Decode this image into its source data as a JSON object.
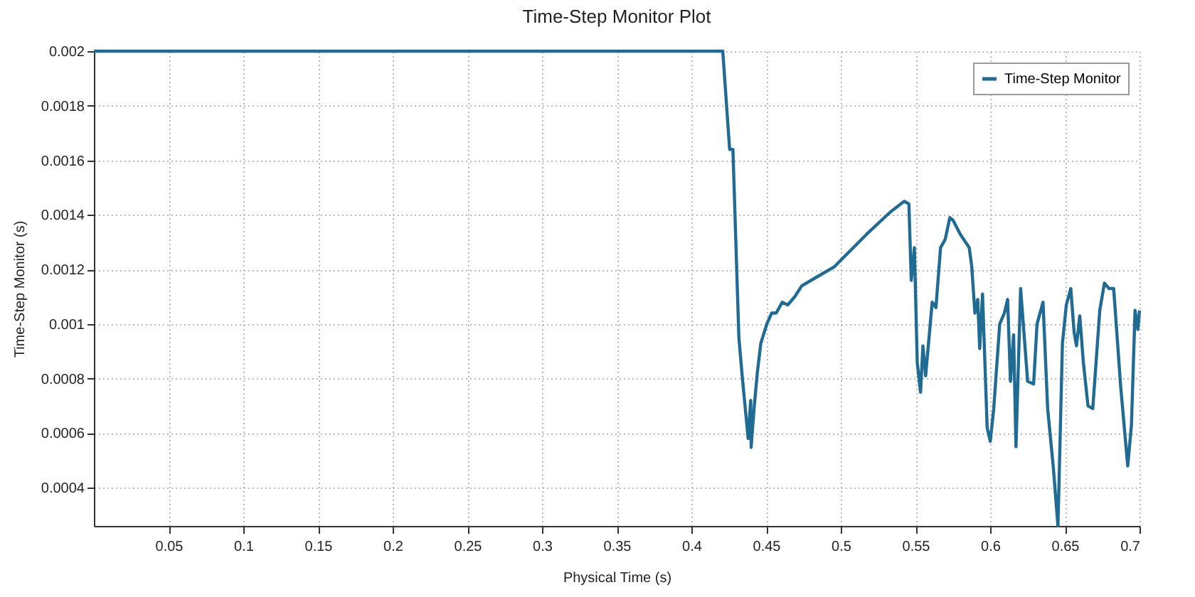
{
  "chart_data": {
    "type": "line",
    "title": "Time-Step Monitor Plot",
    "xlabel": "Physical Time (s)",
    "ylabel": "Time-Step Monitor (s)",
    "xlim": [
      0,
      0.7
    ],
    "xticks": [
      0.05,
      0.1,
      0.15,
      0.2,
      0.25,
      0.3,
      0.35,
      0.4,
      0.45,
      0.5,
      0.55,
      0.6,
      0.65,
      0.7
    ],
    "ylim": [
      0.00026,
      0.002
    ],
    "yticks": [
      0.0004,
      0.0006,
      0.0008,
      0.001,
      0.0012,
      0.0014,
      0.0016,
      0.0018,
      0.002
    ],
    "grid": true,
    "legend": "top right",
    "marker": "none",
    "line_style": "solid",
    "series": [
      {
        "name": "Time-Step Monitor",
        "color": "#1f6b93",
        "x": [
          0,
          0.421,
          0.4256,
          0.4278,
          0.4318,
          0.434,
          0.438,
          0.4397,
          0.44,
          0.4421,
          0.4443,
          0.4465,
          0.4505,
          0.4537,
          0.4568,
          0.4608,
          0.4645,
          0.4692,
          0.4739,
          0.4801,
          0.4957,
          0.5175,
          0.5331,
          0.5425,
          0.5456,
          0.5472,
          0.5493,
          0.5512,
          0.5534,
          0.555,
          0.5568,
          0.5612,
          0.5637,
          0.5668,
          0.5699,
          0.573,
          0.5752,
          0.5799,
          0.586,
          0.5877,
          0.5898,
          0.5917,
          0.593,
          0.5949,
          0.598,
          0.6001,
          0.6024,
          0.6064,
          0.6095,
          0.6117,
          0.6136,
          0.6157,
          0.6173,
          0.6204,
          0.6251,
          0.6291,
          0.6314,
          0.6354,
          0.6385,
          0.6422,
          0.6454,
          0.6484,
          0.651,
          0.654,
          0.6562,
          0.6578,
          0.66,
          0.6624,
          0.6655,
          0.6687,
          0.6734,
          0.6765,
          0.6796,
          0.6827,
          0.6874,
          0.6921,
          0.6946,
          0.697,
          0.6989,
          0.7
        ],
        "values": [
          0.002,
          0.002,
          0.00164,
          0.00164,
          0.00095,
          0.00081,
          0.00058,
          0.00072,
          0.000548,
          0.0007,
          0.00083,
          0.00093,
          0.001,
          0.00104,
          0.00104,
          0.00108,
          0.00107,
          0.0011,
          0.00114,
          0.00116,
          0.00121,
          0.00133,
          0.00141,
          0.00145,
          0.00144,
          0.00116,
          0.00128,
          0.00086,
          0.00075,
          0.00092,
          0.00081,
          0.00108,
          0.00106,
          0.00128,
          0.00131,
          0.00139,
          0.00138,
          0.00133,
          0.00128,
          0.00121,
          0.00104,
          0.00109,
          0.00091,
          0.00111,
          0.00062,
          0.00057,
          0.00069,
          0.001,
          0.00104,
          0.00109,
          0.00079,
          0.00096,
          0.00055,
          0.00113,
          0.00079,
          0.00078,
          0.001,
          0.00108,
          0.00069,
          0.00048,
          0.00026,
          0.00093,
          0.00107,
          0.00113,
          0.00097,
          0.00092,
          0.00103,
          0.00086,
          0.0007,
          0.00069,
          0.00105,
          0.00115,
          0.00113,
          0.00113,
          0.00077,
          0.00048,
          0.00063,
          0.00105,
          0.00098,
          0.00105
        ]
      }
    ]
  }
}
